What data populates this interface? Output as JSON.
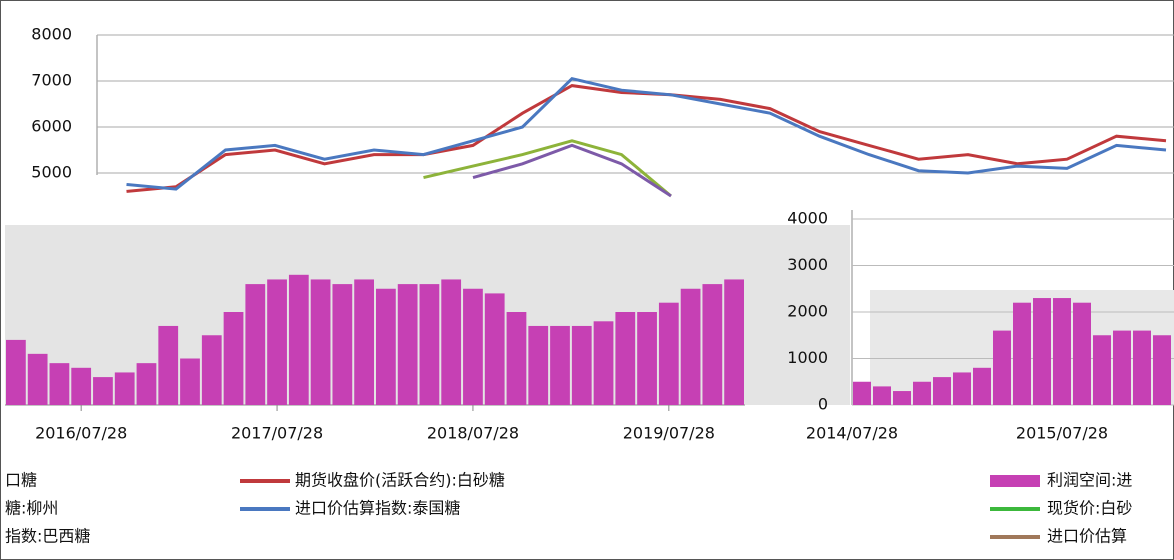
{
  "chart_data": [
    {
      "type": "line",
      "categories": [
        null,
        null,
        null,
        null,
        null,
        null,
        null,
        null,
        null,
        null,
        null,
        null,
        null,
        null,
        null,
        null,
        null,
        null,
        null,
        null,
        null,
        null,
        null
      ],
      "series": [
        {
          "name": "期货收盘价(活跃合约):白砂糖",
          "color": "#c0393c",
          "values": [
            null,
            4600,
            4700,
            5400,
            5500,
            5200,
            5400,
            5400,
            5600,
            6300,
            6900,
            6750,
            6700,
            6600,
            6400,
            5900,
            5600,
            5300,
            5400,
            5200,
            5300,
            5800,
            5700
          ]
        },
        {
          "name": "进口价估算指数:泰国糖",
          "color": "#4a78c0",
          "values": [
            null,
            4750,
            4650,
            5500,
            5600,
            5300,
            5500,
            5400,
            5700,
            6000,
            7050,
            6800,
            6700,
            6500,
            6300,
            5800,
            5400,
            5050,
            5000,
            5150,
            5100,
            5600,
            5500
          ]
        },
        {
          "name": "糖:柳州",
          "color": "#8db33a",
          "values": [
            null,
            null,
            null,
            null,
            null,
            null,
            null,
            4900,
            5150,
            5400,
            5700,
            5400,
            4500,
            null,
            null,
            null,
            null,
            null,
            null,
            null,
            null,
            null,
            null
          ]
        },
        {
          "name": "指数:巴西糖",
          "color": "#7d5aa8",
          "values": [
            null,
            null,
            null,
            null,
            null,
            null,
            null,
            null,
            4900,
            5200,
            5600,
            5200,
            4500,
            null,
            null,
            null,
            null,
            null,
            null,
            null,
            null,
            null,
            null
          ]
        }
      ],
      "legend_extra": [
        "口糖"
      ],
      "ylim": [
        4000,
        8000
      ],
      "yticks": [
        5000,
        6000,
        7000,
        8000
      ],
      "grid": true
    },
    {
      "type": "bar",
      "categories": [
        null,
        null,
        null,
        "2016/07/28",
        null,
        null,
        null,
        null,
        null,
        null,
        null,
        null,
        "2017/07/28",
        null,
        null,
        null,
        null,
        null,
        null,
        null,
        null,
        "2018/07/28",
        null,
        null,
        null,
        null,
        null,
        null,
        null,
        null,
        "2019/07/28",
        null,
        null,
        null
      ],
      "values": [
        1400,
        1100,
        900,
        800,
        600,
        700,
        900,
        1700,
        1000,
        1500,
        2000,
        2600,
        2700,
        2800,
        2700,
        2600,
        2700,
        2500,
        2600,
        2600,
        2700,
        2500,
        2400,
        2000,
        1700,
        1700,
        1700,
        1800,
        2000,
        2000,
        2200,
        2500,
        2600,
        2700
      ],
      "color": "#c640b4",
      "ylim": [
        0,
        4000
      ]
    },
    {
      "type": "bar",
      "categories": [
        "2014/07/28",
        null,
        null,
        null,
        null,
        null,
        null,
        null,
        null,
        null,
        "2015/07/28",
        null,
        null,
        null,
        null,
        null
      ],
      "series": [
        {
          "name": "利润空间:进",
          "color": "#c640b4",
          "values": [
            500,
            400,
            300,
            500,
            600,
            700,
            800,
            1600,
            2200,
            2300,
            2300,
            2200,
            1500,
            1600,
            1600,
            1500
          ]
        }
      ],
      "legend_extra": [
        {
          "name": "现货价:白砂",
          "color": "#3cb83c"
        },
        {
          "name": "进口价估算",
          "color": "#a0785a"
        }
      ],
      "ylim": [
        0,
        4000
      ],
      "yticks": [
        0,
        1000,
        2000,
        3000,
        4000
      ],
      "grid": true
    }
  ]
}
